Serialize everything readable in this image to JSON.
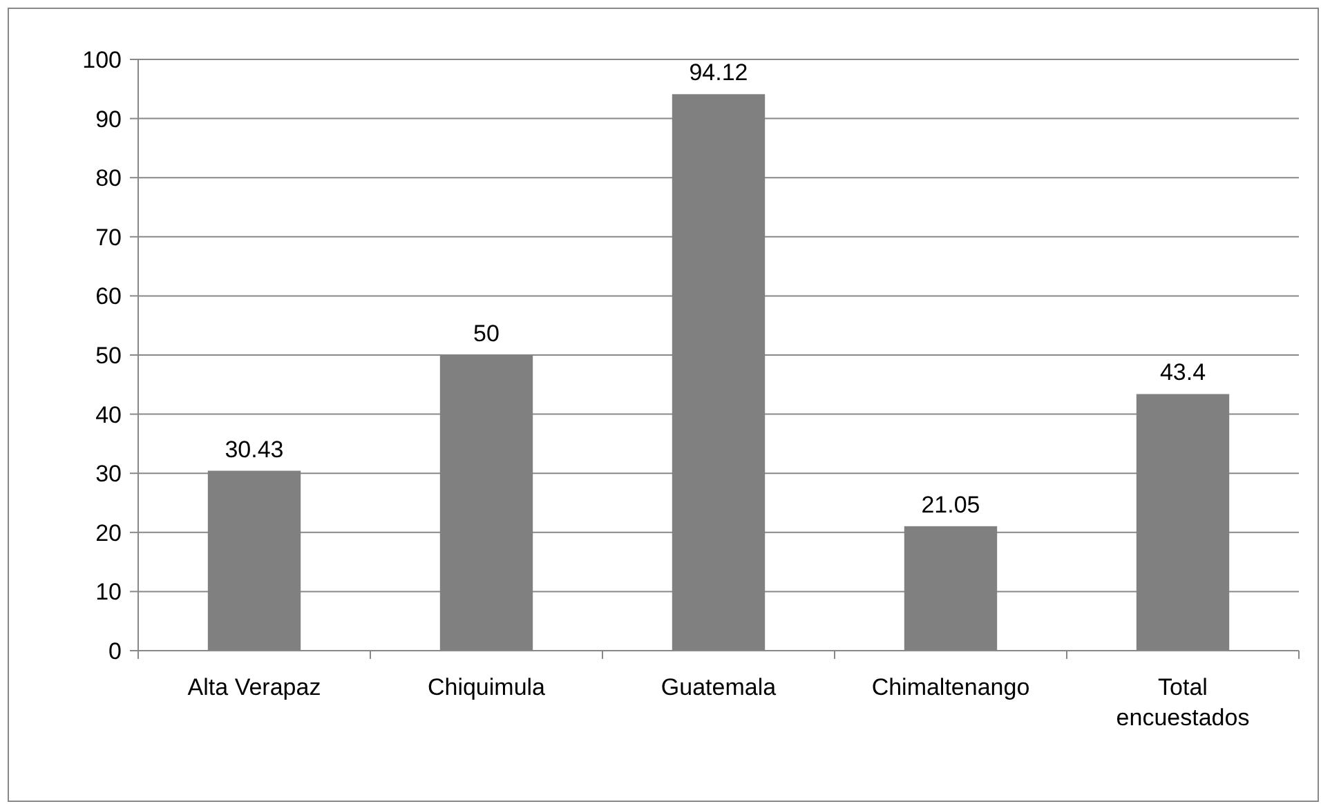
{
  "chart_data": {
    "type": "bar",
    "categories": [
      "Alta Verapaz",
      "Chiquimula",
      "Guatemala",
      "Chimaltenango",
      "Total encuestados"
    ],
    "values": [
      30.43,
      50,
      94.12,
      21.05,
      43.4
    ],
    "color": "#808080",
    "ylim": [
      0,
      100
    ],
    "yticks": [
      0,
      10,
      20,
      30,
      40,
      50,
      60,
      70,
      80,
      90,
      100
    ],
    "grid": "y",
    "data_labels": true
  }
}
